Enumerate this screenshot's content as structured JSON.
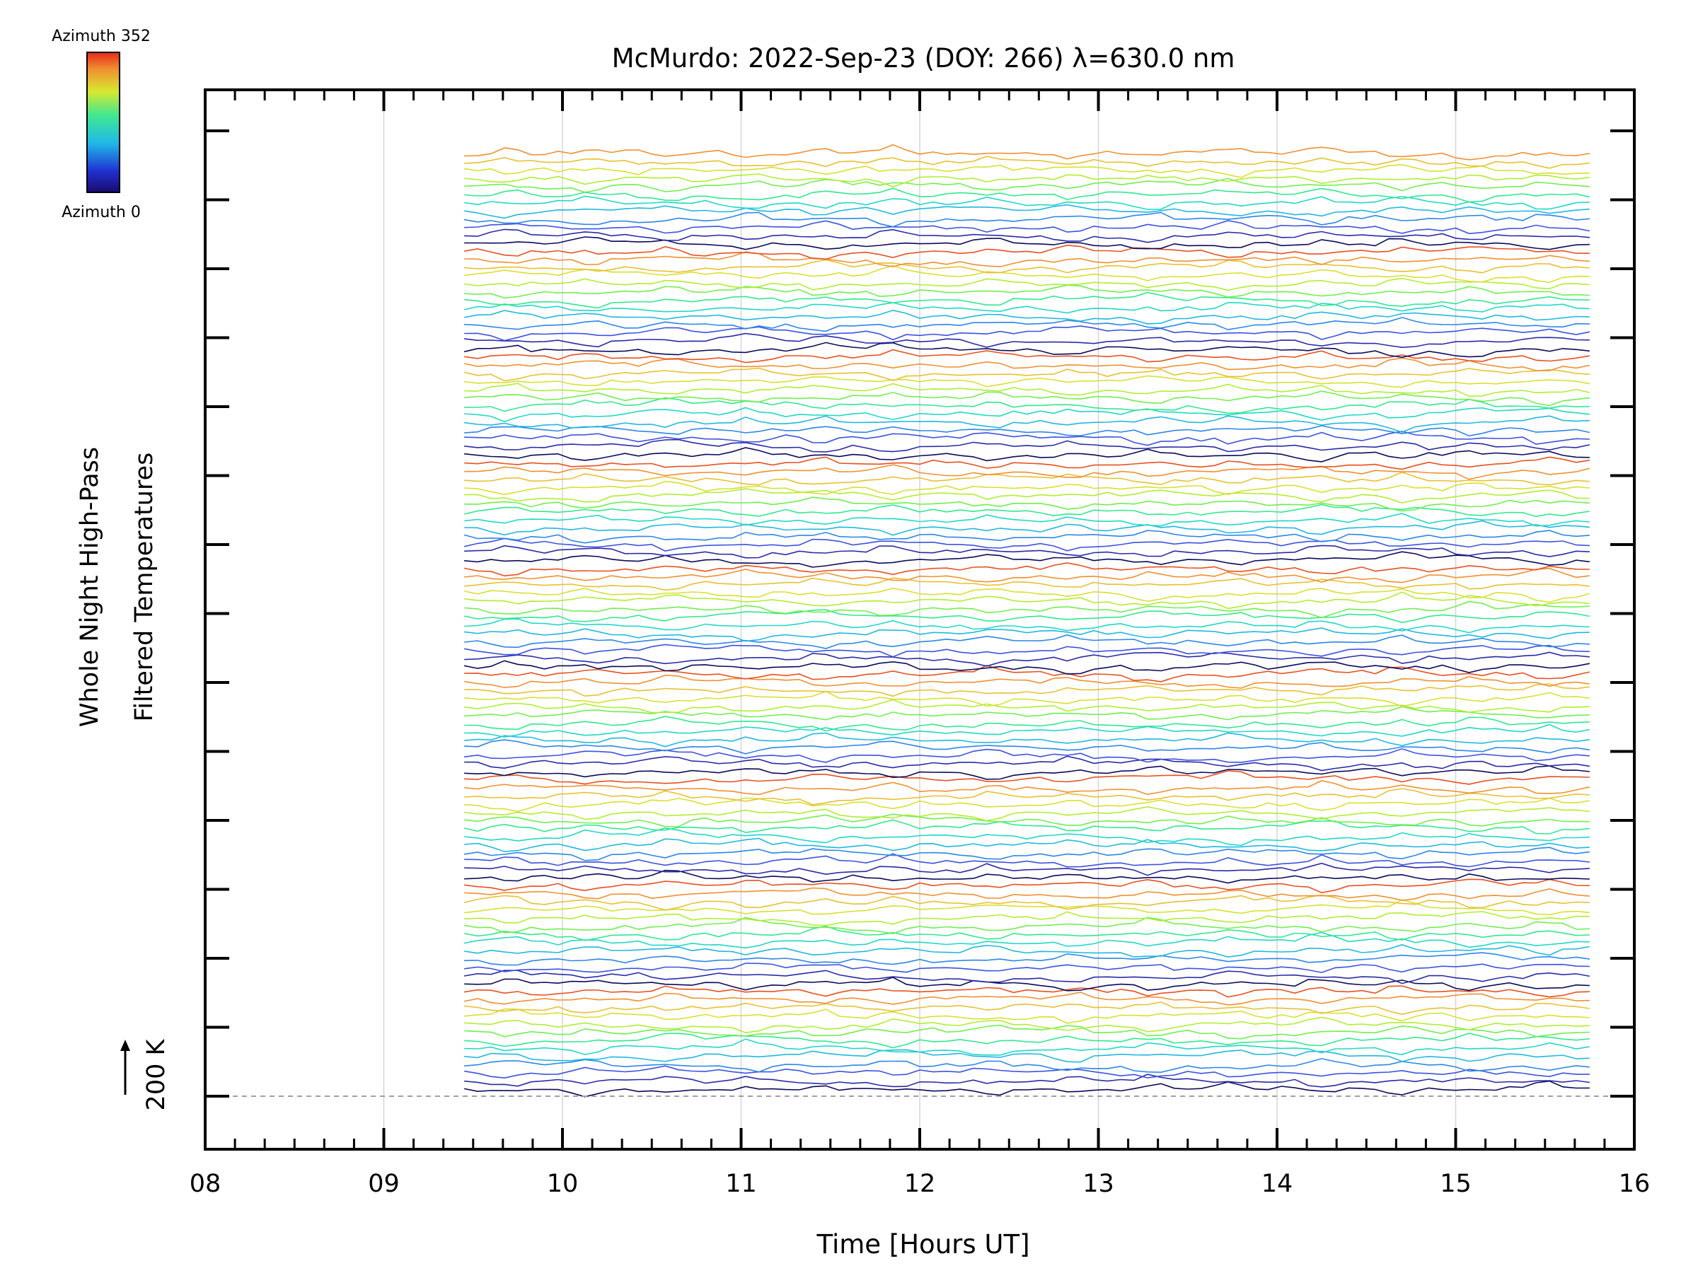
{
  "chart_data": {
    "type": "line",
    "title": "McMurdo: 2022-Sep-23 (DOY: 266) λ=630.0 nm",
    "xlabel": "Time [Hours UT]",
    "ylabel_line1": "Whole Night High-Pass",
    "ylabel_line2": "Filtered Temperatures",
    "xlim": [
      8,
      16
    ],
    "x_ticks": [
      "08",
      "09",
      "10",
      "11",
      "12",
      "13",
      "14",
      "15",
      "16"
    ],
    "x_tick_values": [
      8,
      9,
      10,
      11,
      12,
      13,
      14,
      15,
      16
    ],
    "data_time_range": [
      9.45,
      15.78
    ],
    "scale_bar_label": "200 K",
    "colorbar": {
      "top_label": "Azimuth 352",
      "bottom_label": "Azimuth 0",
      "colormap": "rainbow"
    },
    "series_count": 116,
    "series_colors_cycle": [
      "#0a0a5a",
      "#2a2aa8",
      "#3c52e0",
      "#2c86e8",
      "#20b8e0",
      "#20d8c8",
      "#30e890",
      "#70ee50",
      "#b0ee30",
      "#d8e030",
      "#e8c030",
      "#f09030",
      "#e85020"
    ],
    "grid": true
  }
}
